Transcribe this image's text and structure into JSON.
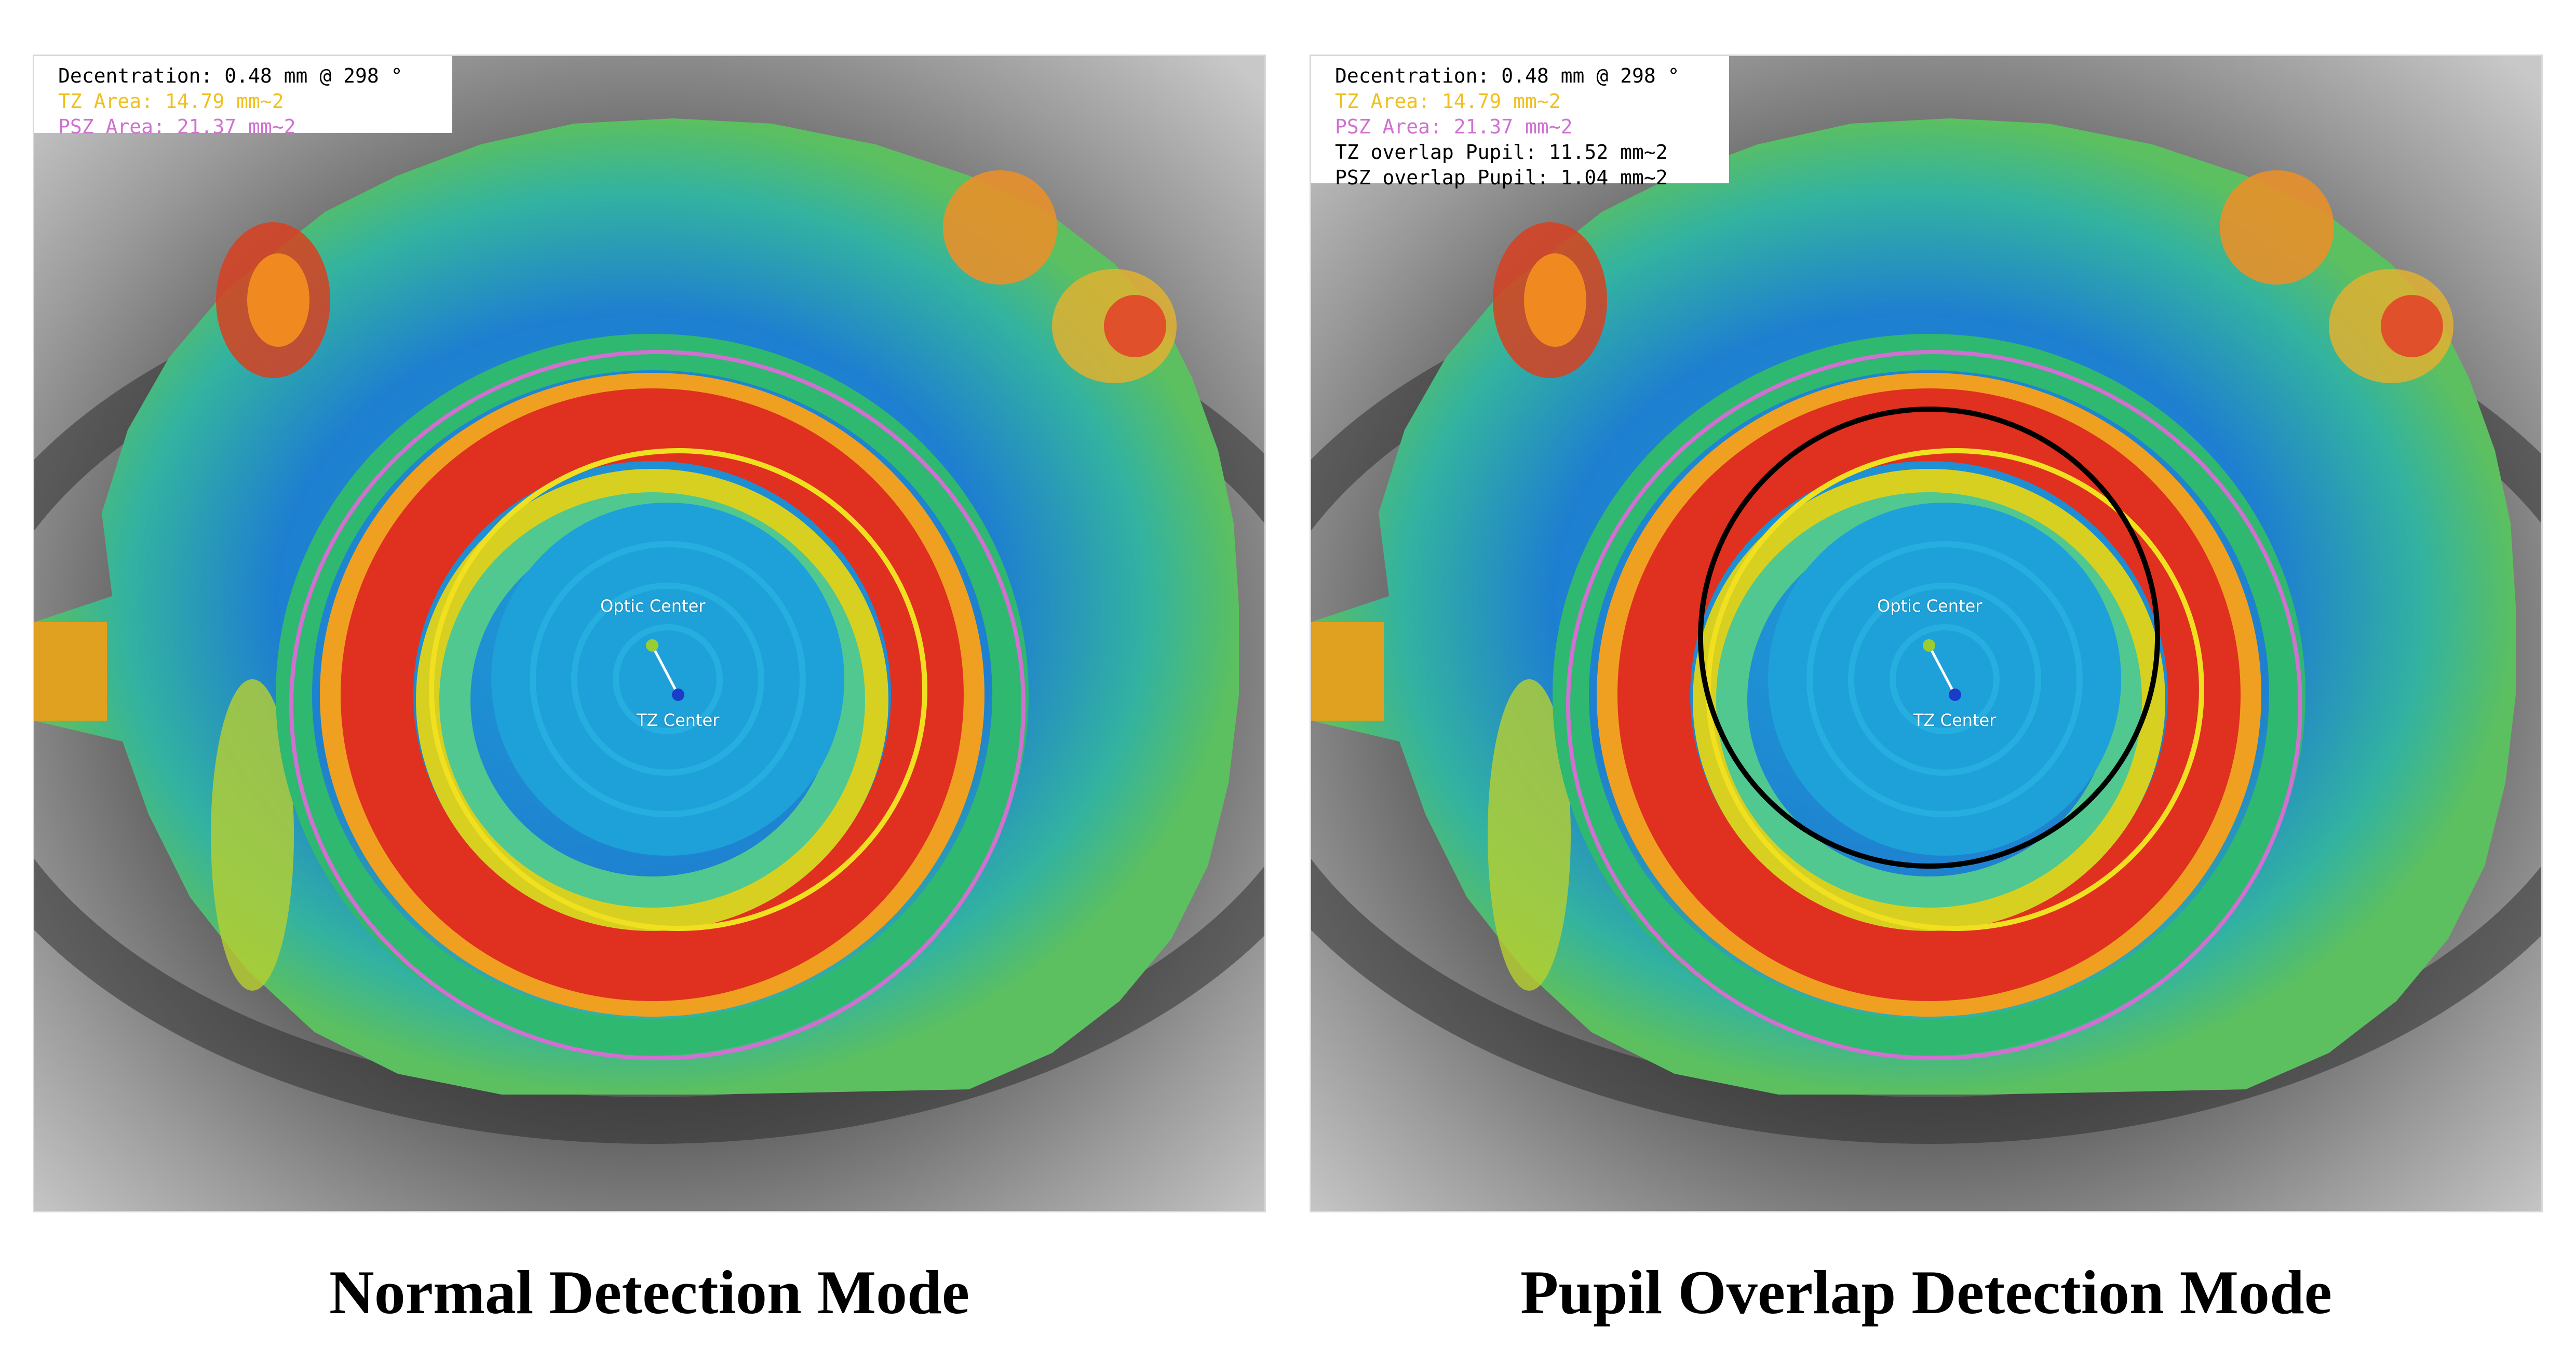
{
  "colors": {
    "info_default": "#000000",
    "tz_color": "#f0c020",
    "psz_color": "#d070d0",
    "pupil_circle": "#000000",
    "optic_marker": "#9acd32",
    "tz_marker": "#1a3cc8"
  },
  "panels": [
    {
      "id": "normal",
      "info": [
        {
          "text": "Decentration: 0.48 mm @ 298 °",
          "color": "#000000"
        },
        {
          "text": "TZ Area: 14.79 mm~2",
          "color": "#f0c020"
        },
        {
          "text": "PSZ Area: 21.37 mm~2",
          "color": "#d070d0"
        }
      ],
      "optic_label": "Optic Center",
      "tz_label": "TZ Center",
      "caption": "Normal Detection Mode"
    },
    {
      "id": "pupil",
      "info": [
        {
          "text": "Decentration: 0.48 mm @ 298 °",
          "color": "#000000"
        },
        {
          "text": "TZ Area: 14.79 mm~2",
          "color": "#f0c020"
        },
        {
          "text": "PSZ Area: 21.37 mm~2",
          "color": "#d070d0"
        },
        {
          "text": "TZ overlap Pupil: 11.52 mm~2",
          "color": "#000000"
        },
        {
          "text": "PSZ overlap Pupil: 1.04 mm~2",
          "color": "#000000"
        }
      ],
      "optic_label": "Optic Center",
      "tz_label": "TZ Center",
      "caption": "Pupil Overlap Detection Mode"
    }
  ]
}
